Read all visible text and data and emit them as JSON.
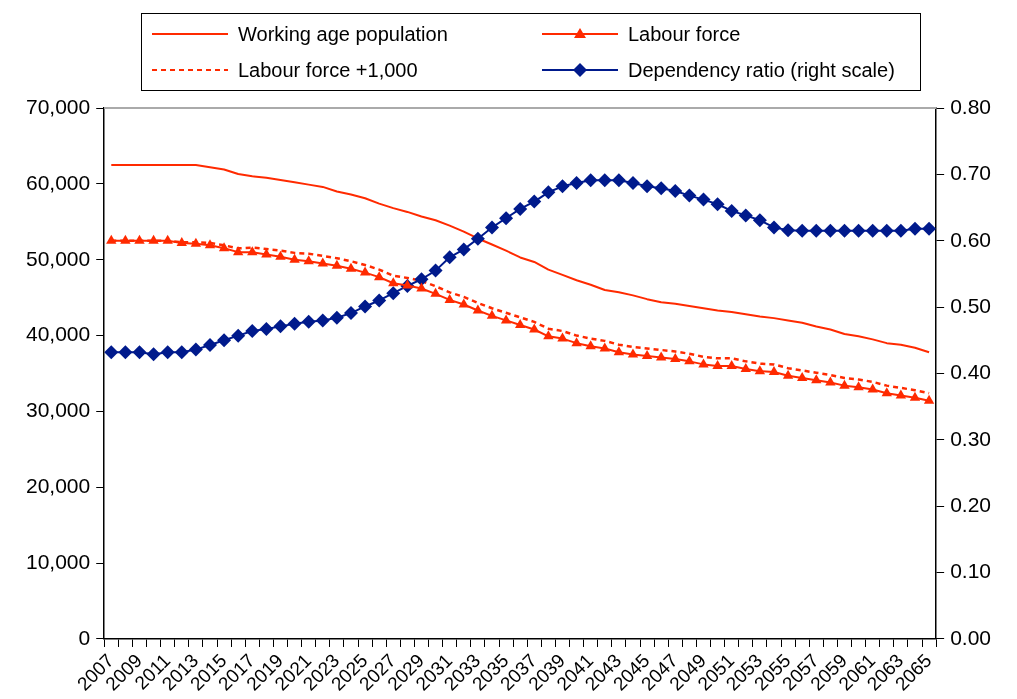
{
  "chart_data": {
    "type": "line",
    "legend": "top",
    "grid": false,
    "categories": [
      "2007",
      null,
      "2009",
      null,
      "2011",
      null,
      "2013",
      null,
      "2015",
      null,
      "2017",
      null,
      "2019",
      null,
      "2021",
      null,
      "2023",
      null,
      "2025",
      null,
      "2027",
      null,
      "2029",
      null,
      "2031",
      null,
      "2033",
      null,
      "2035",
      null,
      "2037",
      null,
      "2039",
      null,
      "2041",
      null,
      "2043",
      null,
      "2045",
      null,
      "2047",
      null,
      "2049",
      null,
      "2051",
      null,
      "2053",
      null,
      "2055",
      null,
      "2057",
      null,
      "2059",
      null,
      "2061",
      null,
      "2063",
      null,
      "2065"
    ],
    "ylim": [
      0,
      70000
    ],
    "yticks": [
      {
        "value": 0,
        "label": "0"
      },
      {
        "value": 10000,
        "label": "10,000"
      },
      {
        "value": 20000,
        "label": "20,000"
      },
      {
        "value": 30000,
        "label": "30,000"
      },
      {
        "value": 40000,
        "label": "40,000"
      },
      {
        "value": 50000,
        "label": "50,000"
      },
      {
        "value": 60000,
        "label": "60,000"
      },
      {
        "value": 70000,
        "label": "70,000"
      }
    ],
    "y2lim": [
      0,
      0.8
    ],
    "y2ticks": [
      {
        "value": 0,
        "label": "0.00"
      },
      {
        "value": 0.1,
        "label": "0.10"
      },
      {
        "value": 0.2,
        "label": "0.20"
      },
      {
        "value": 0.3,
        "label": "0.30"
      },
      {
        "value": 0.4,
        "label": "0.40"
      },
      {
        "value": 0.5,
        "label": "0.50"
      },
      {
        "value": 0.6,
        "label": "0.60"
      },
      {
        "value": 0.7,
        "label": "0.70"
      },
      {
        "value": 0.8,
        "label": "0.80"
      }
    ],
    "series": [
      {
        "name": "Working age population",
        "color": "#ff2a00",
        "marker": "none",
        "line_style": "solid",
        "values": [
          62500,
          62500,
          62500,
          62500,
          62500,
          62500,
          62500,
          62200,
          61900,
          61300,
          61000,
          60800,
          60500,
          60200,
          59900,
          59600,
          59000,
          58600,
          58100,
          57400,
          56800,
          56300,
          55700,
          55200,
          54500,
          53700,
          52800,
          52000,
          51200,
          50300,
          49700,
          48700,
          48000,
          47300,
          46700,
          46000,
          45700,
          45300,
          44800,
          44400,
          44200,
          43900,
          43600,
          43300,
          43100,
          42800,
          42500,
          42300,
          42000,
          41700,
          41200,
          40800,
          40200,
          39900,
          39500,
          39000,
          38800,
          38400,
          37800
        ]
      },
      {
        "name": "Labour force",
        "color": "#ff2a00",
        "marker": "triangle",
        "line_style": "solid",
        "values": [
          52500,
          52500,
          52500,
          52500,
          52500,
          52200,
          52100,
          51900,
          51500,
          51000,
          51000,
          50700,
          50400,
          50000,
          49800,
          49500,
          49200,
          48800,
          48300,
          47700,
          46900,
          46600,
          46200,
          45500,
          44700,
          44100,
          43300,
          42600,
          42000,
          41400,
          40800,
          39900,
          39600,
          39000,
          38600,
          38300,
          37800,
          37500,
          37300,
          37100,
          36900,
          36600,
          36200,
          36000,
          36000,
          35600,
          35300,
          35200,
          34700,
          34400,
          34100,
          33800,
          33400,
          33200,
          32900,
          32400,
          32100,
          31800,
          31400
        ]
      },
      {
        "name": "Labour force +1,000",
        "color": "#ff2a00",
        "marker": "none",
        "line_style": "dashed",
        "values": [
          52500,
          52500,
          52500,
          52500,
          52500,
          52300,
          52300,
          52200,
          51900,
          51500,
          51600,
          51400,
          51200,
          50900,
          50800,
          50500,
          50200,
          49800,
          49300,
          48700,
          47900,
          47600,
          47200,
          46500,
          45700,
          45100,
          44300,
          43600,
          43000,
          42400,
          41800,
          40900,
          40600,
          40000,
          39600,
          39300,
          38800,
          38500,
          38300,
          38100,
          37900,
          37600,
          37200,
          37000,
          37000,
          36600,
          36300,
          36200,
          35700,
          35400,
          35100,
          34800,
          34400,
          34200,
          33900,
          33400,
          33100,
          32800,
          32400
        ]
      },
      {
        "name": "Dependency ratio (right scale)",
        "color": "#001a8c",
        "marker": "diamond",
        "line_style": "solid",
        "axis": "y2",
        "values": [
          0.432,
          0.432,
          0.432,
          0.429,
          0.432,
          0.432,
          0.436,
          0.443,
          0.45,
          0.457,
          0.464,
          0.467,
          0.471,
          0.475,
          0.478,
          0.48,
          0.484,
          0.491,
          0.501,
          0.51,
          0.521,
          0.532,
          0.542,
          0.555,
          0.575,
          0.587,
          0.603,
          0.62,
          0.634,
          0.648,
          0.659,
          0.673,
          0.682,
          0.687,
          0.691,
          0.691,
          0.691,
          0.687,
          0.682,
          0.679,
          0.675,
          0.668,
          0.662,
          0.655,
          0.645,
          0.638,
          0.631,
          0.62,
          0.616,
          0.615,
          0.615,
          0.615,
          0.615,
          0.615,
          0.615,
          0.615,
          0.615,
          0.618,
          0.618
        ]
      }
    ]
  }
}
